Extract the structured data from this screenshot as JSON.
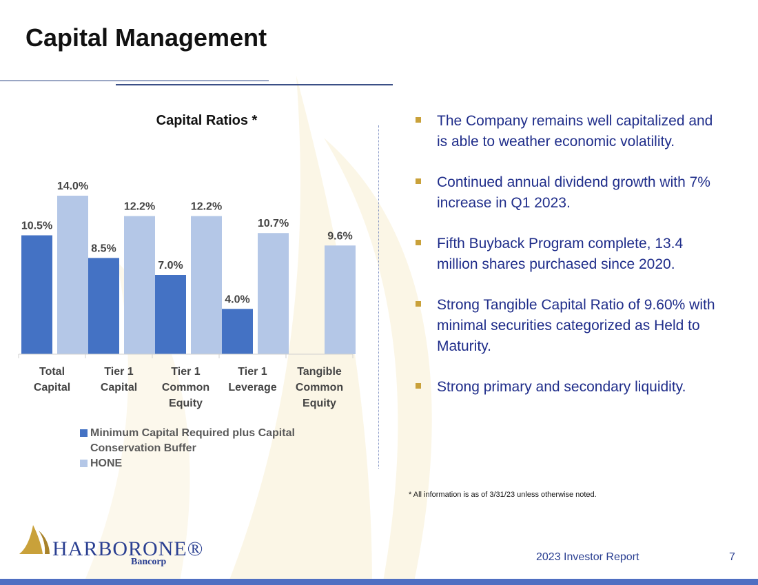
{
  "page": {
    "title": "Capital Management",
    "footer_report": "2023 Investor Report",
    "page_number": "7"
  },
  "logo": {
    "name": "HarborOne",
    "name_display": "HARBORONE®",
    "sub": "Bancorp"
  },
  "bullets": [
    "The Company remains well capitalized and is able to weather economic volatility.",
    "Continued  annual dividend growth with 7% increase in Q1 2023.",
    "Fifth Buyback Program complete, 13.4 million shares purchased since 2020.",
    "Strong Tangible Capital Ratio of 9.60% with minimal securities categorized as Held to Maturity.",
    "Strong primary and secondary liquidity."
  ],
  "footnote": "* All information is as of 3/31/23 unless otherwise noted.",
  "colors": {
    "series_min": "#4472c4",
    "series_hone": "#b4c7e7",
    "bullet": "#c9a13a",
    "text_blue": "#1f2d8a",
    "bar_footer": "#4f6fc2"
  },
  "chart_data": {
    "type": "bar",
    "title": "Capital Ratios *",
    "categories": [
      [
        "Total",
        "Capital"
      ],
      [
        "Tier 1",
        "Capital"
      ],
      [
        "Tier 1",
        "Common",
        "Equity"
      ],
      [
        "Tier 1",
        "Leverage"
      ],
      [
        "Tangible",
        "Common",
        "Equity"
      ]
    ],
    "series": [
      {
        "name": "Minimum Capital Required plus Capital Conservation Buffer",
        "values": [
          10.5,
          8.5,
          7.0,
          4.0,
          null
        ],
        "labels": [
          "10.5%",
          "8.5%",
          "7.0%",
          "4.0%",
          ""
        ]
      },
      {
        "name": "HONE",
        "values": [
          14.0,
          12.2,
          12.2,
          10.7,
          9.6
        ],
        "labels": [
          "14.0%",
          "12.2%",
          "12.2%",
          "10.7%",
          "9.6%"
        ]
      }
    ],
    "ylim": [
      0,
      14.0
    ],
    "xlabel": "",
    "ylabel": "",
    "grid": false,
    "legend": "bottom"
  }
}
